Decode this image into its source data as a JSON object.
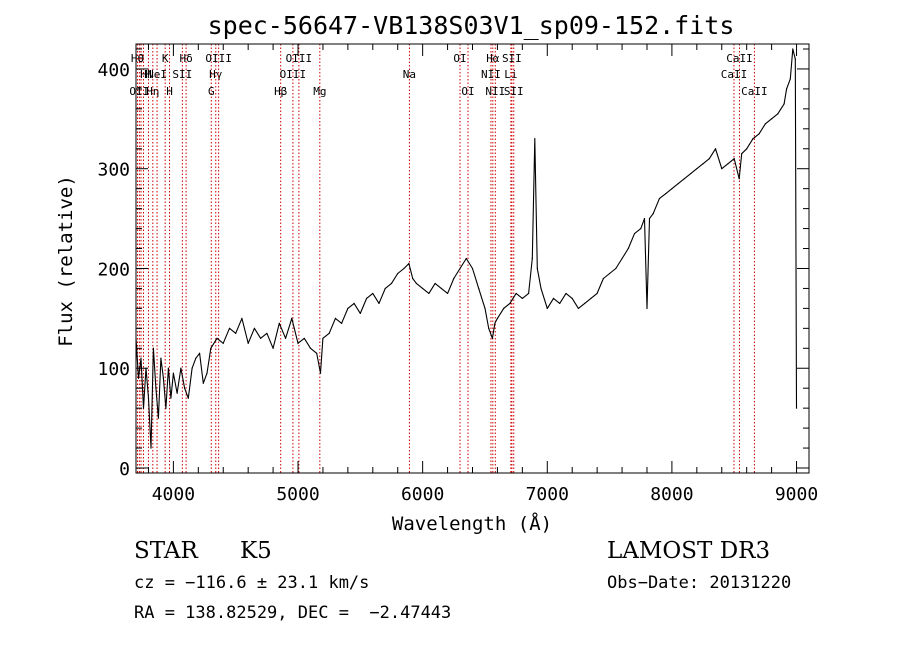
{
  "chart_data": {
    "type": "line",
    "title": "spec-56647-VB138S03V1_sp09-152.fits",
    "xlabel": "Wavelength (Å)",
    "ylabel": "Flux (relative)",
    "xlim": [
      3700,
      9100
    ],
    "ylim": [
      -5,
      425
    ],
    "xticks": [
      4000,
      5000,
      6000,
      7000,
      8000,
      9000
    ],
    "yticks": [
      0,
      100,
      200,
      300,
      400
    ],
    "xtick_labels": [
      "4000",
      "5000",
      "6000",
      "7000",
      "8000",
      "9000"
    ],
    "ytick_labels": [
      "0",
      "100",
      "200",
      "300",
      "400"
    ],
    "series": [
      {
        "color": "#000000",
        "x": [
          3700,
          3720,
          3740,
          3760,
          3780,
          3800,
          3820,
          3840,
          3860,
          3880,
          3900,
          3920,
          3940,
          3960,
          3980,
          4000,
          4030,
          4060,
          4090,
          4120,
          4150,
          4180,
          4210,
          4240,
          4270,
          4300,
          4350,
          4400,
          4450,
          4500,
          4550,
          4600,
          4650,
          4700,
          4750,
          4800,
          4850,
          4900,
          4950,
          5000,
          5050,
          5100,
          5150,
          5180,
          5200,
          5250,
          5300,
          5350,
          5400,
          5450,
          5500,
          5550,
          5600,
          5650,
          5700,
          5750,
          5800,
          5850,
          5890,
          5920,
          5950,
          6000,
          6050,
          6100,
          6150,
          6200,
          6250,
          6300,
          6350,
          6400,
          6450,
          6500,
          6530,
          6560,
          6580,
          6600,
          6650,
          6700,
          6750,
          6800,
          6850,
          6880,
          6900,
          6920,
          6950,
          7000,
          7050,
          7100,
          7150,
          7200,
          7250,
          7300,
          7350,
          7400,
          7450,
          7500,
          7550,
          7600,
          7650,
          7700,
          7750,
          7780,
          7800,
          7820,
          7850,
          7900,
          7950,
          8000,
          8050,
          8100,
          8150,
          8200,
          8250,
          8300,
          8350,
          8400,
          8450,
          8500,
          8540,
          8560,
          8600,
          8650,
          8700,
          8750,
          8800,
          8850,
          8900,
          8920,
          8950,
          8970,
          8990,
          9000
        ],
        "y": [
          130,
          90,
          110,
          60,
          100,
          70,
          20,
          120,
          80,
          50,
          110,
          90,
          60,
          100,
          70,
          95,
          75,
          100,
          80,
          70,
          100,
          110,
          115,
          85,
          95,
          120,
          130,
          125,
          140,
          135,
          150,
          125,
          140,
          130,
          135,
          120,
          145,
          130,
          150,
          125,
          130,
          120,
          115,
          95,
          130,
          135,
          150,
          145,
          160,
          165,
          155,
          170,
          175,
          165,
          180,
          185,
          195,
          200,
          205,
          190,
          185,
          180,
          175,
          185,
          180,
          175,
          190,
          200,
          210,
          200,
          180,
          160,
          140,
          130,
          145,
          150,
          160,
          165,
          175,
          170,
          175,
          210,
          330,
          200,
          180,
          160,
          170,
          165,
          175,
          170,
          160,
          165,
          170,
          175,
          190,
          195,
          200,
          210,
          220,
          235,
          240,
          250,
          160,
          250,
          255,
          270,
          275,
          280,
          285,
          290,
          295,
          300,
          305,
          310,
          320,
          300,
          305,
          310,
          290,
          315,
          320,
          330,
          335,
          345,
          350,
          355,
          365,
          380,
          390,
          420,
          410,
          60
        ]
      }
    ],
    "lines": [
      {
        "x": 3712,
        "row": 1,
        "label": "Hθ",
        "color": "#cc0000"
      },
      {
        "x": 3740,
        "row": 1,
        "label": "O",
        "color": "#cc0000"
      },
      {
        "x": 3727,
        "row": 3,
        "label": "OII",
        "color": "#cc0000"
      },
      {
        "x": 3760,
        "row": 2,
        "label": "H",
        "color": "#cc0000"
      },
      {
        "x": 3800,
        "row": 2,
        "label": "H",
        "color": "#cc0000"
      },
      {
        "x": 3835,
        "row": 3,
        "label": "Hη",
        "color": "#cc0000"
      },
      {
        "x": 3869,
        "row": 2,
        "label": "NeI",
        "color": "#cc0000"
      },
      {
        "x": 3934,
        "row": 1,
        "label": "K",
        "color": "#cc0000"
      },
      {
        "x": 3969,
        "row": 3,
        "label": "H",
        "color": "#cc0000"
      },
      {
        "x": 4072,
        "row": 2,
        "label": "SII",
        "color": "#cc0000"
      },
      {
        "x": 4102,
        "row": 1,
        "label": "Hδ",
        "color": "#cc0000"
      },
      {
        "x": 4304,
        "row": 3,
        "label": "G",
        "color": "#cc0000"
      },
      {
        "x": 4340,
        "row": 2,
        "label": "Hγ",
        "color": "#cc0000"
      },
      {
        "x": 4363,
        "row": 1,
        "label": "OIII",
        "color": "#cc0000"
      },
      {
        "x": 4861,
        "row": 3,
        "label": "Hβ",
        "color": "#cc0000"
      },
      {
        "x": 4959,
        "row": 2,
        "label": "OIII",
        "color": "#cc0000"
      },
      {
        "x": 5007,
        "row": 1,
        "label": "OIII",
        "color": "#cc0000"
      },
      {
        "x": 5175,
        "row": 3,
        "label": "Mg",
        "color": "#cc0000"
      },
      {
        "x": 5894,
        "row": 2,
        "label": "Na",
        "color": "#cc0000"
      },
      {
        "x": 6300,
        "row": 1,
        "label": "OI",
        "color": "#cc0000"
      },
      {
        "x": 6364,
        "row": 3,
        "label": "OI",
        "color": "#cc0000"
      },
      {
        "x": 6548,
        "row": 2,
        "label": "NII",
        "color": "#cc0000"
      },
      {
        "x": 6563,
        "row": 1,
        "label": "Hα",
        "color": "#cc0000"
      },
      {
        "x": 6583,
        "row": 3,
        "label": "NII",
        "color": "#cc0000"
      },
      {
        "x": 6708,
        "row": 2,
        "label": "Li",
        "color": "#cc0000"
      },
      {
        "x": 6716,
        "row": 1,
        "label": "SII",
        "color": "#cc0000"
      },
      {
        "x": 6731,
        "row": 3,
        "label": "SII",
        "color": "#cc0000"
      },
      {
        "x": 8498,
        "row": 2,
        "label": "CaII",
        "color": "#cc0000"
      },
      {
        "x": 8542,
        "row": 1,
        "label": "CaII",
        "color": "#cc0000"
      },
      {
        "x": 8662,
        "row": 3,
        "label": "CaII",
        "color": "#cc0000"
      }
    ]
  },
  "footer": {
    "class": "STAR",
    "subclass": "K5",
    "survey": "LAMOST DR3",
    "cz": "cz = −116.6 ± 23.1 km/s",
    "obs_date": "Obs−Date: 20131220",
    "coords": "RA = 138.82529, DEC =  −2.47443"
  }
}
